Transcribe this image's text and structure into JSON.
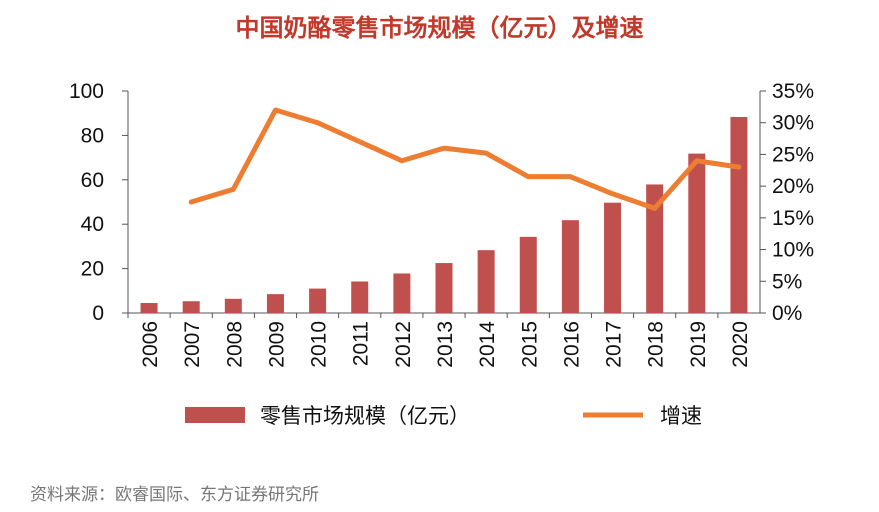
{
  "title": "中国奶酪零售市场规模（亿元）及增速",
  "source": "资料来源：欧睿国际、东方证券研究所",
  "colors": {
    "bar": "#c0504d",
    "line": "#ed7d31",
    "title": "#c0392b"
  },
  "chart_data": {
    "type": "bar",
    "categories": [
      "2006",
      "2007",
      "2008",
      "2009",
      "2010",
      "2011",
      "2012",
      "2013",
      "2014",
      "2015",
      "2016",
      "2017",
      "2018",
      "2019",
      "2020"
    ],
    "series": [
      {
        "name": "零售市场规模（亿元）",
        "type": "bar",
        "axis": "left",
        "values": [
          4.5,
          5.3,
          6.4,
          8.5,
          11.0,
          14.2,
          17.8,
          22.5,
          28.3,
          34.3,
          41.8,
          49.7,
          57.9,
          71.8,
          88.3
        ]
      },
      {
        "name": "增速",
        "type": "line",
        "axis": "right",
        "values": [
          null,
          0.175,
          0.195,
          0.32,
          0.3,
          0.27,
          0.24,
          0.26,
          0.252,
          0.215,
          0.215,
          0.188,
          0.165,
          0.24,
          0.23
        ]
      }
    ],
    "y_left": {
      "ylim": [
        0,
        100
      ],
      "ticks": [
        "0",
        "20",
        "40",
        "60",
        "80",
        "100"
      ]
    },
    "y_right": {
      "ylim": [
        0,
        0.35
      ],
      "ticks": [
        "0%",
        "5%",
        "10%",
        "15%",
        "20%",
        "25%",
        "30%",
        "35%"
      ]
    },
    "legend": {
      "position": "bottom"
    }
  }
}
